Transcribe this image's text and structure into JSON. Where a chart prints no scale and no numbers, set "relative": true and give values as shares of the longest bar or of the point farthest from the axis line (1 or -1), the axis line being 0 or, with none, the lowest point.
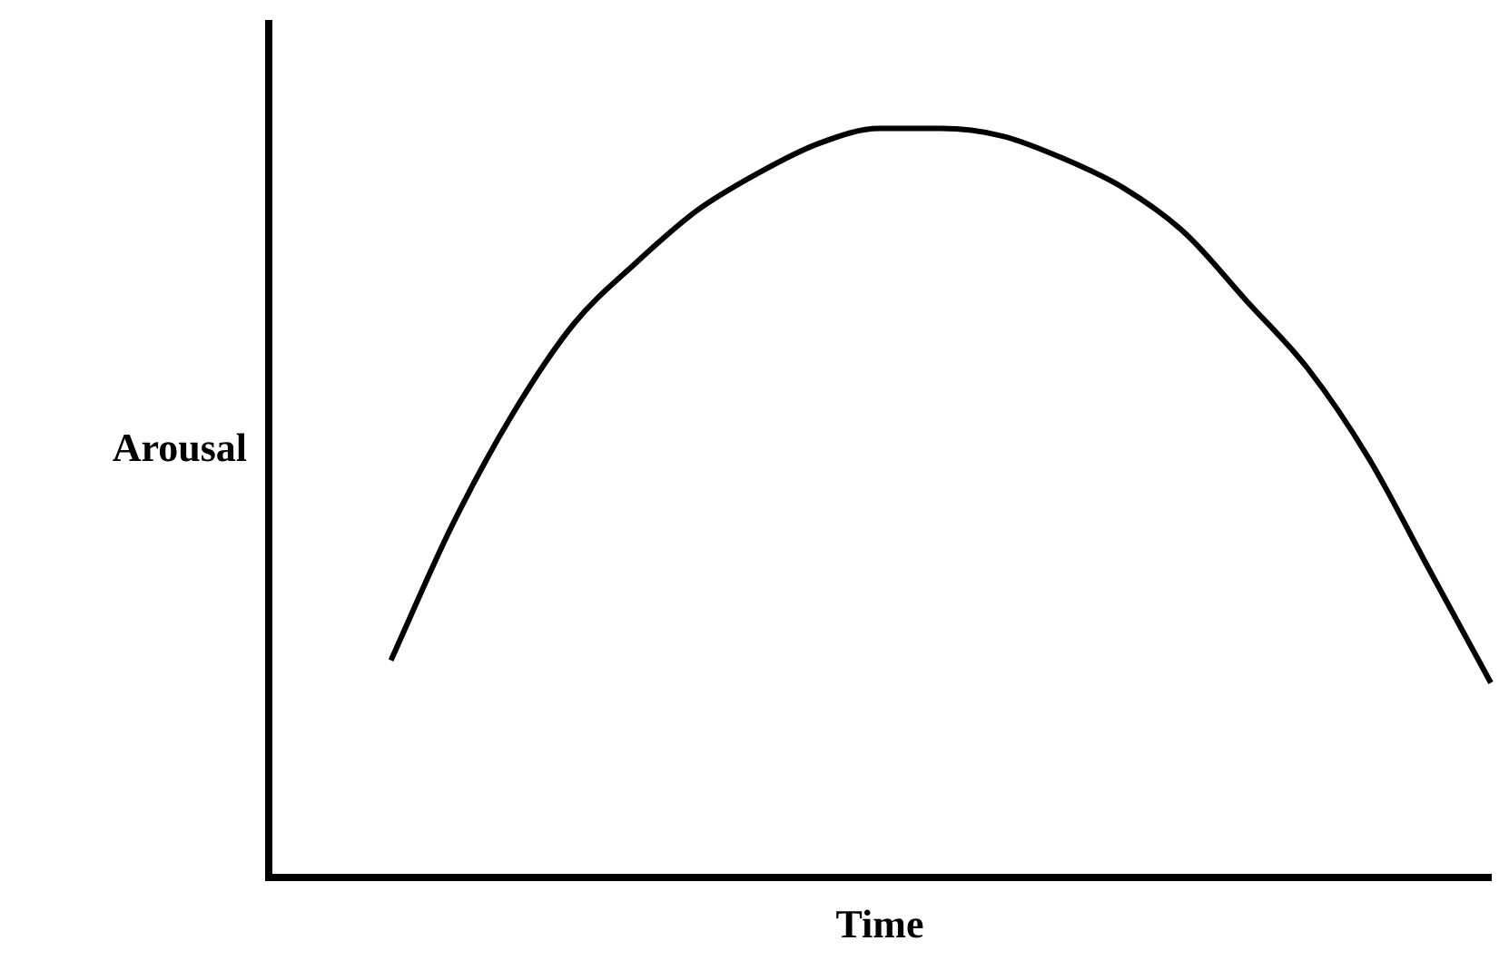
{
  "chart_data": {
    "type": "line",
    "relative": true,
    "xlabel": "Time",
    "ylabel": "Arousal",
    "categories": [
      null,
      null,
      null,
      null,
      null,
      null,
      null,
      null,
      null,
      null,
      null,
      null,
      null,
      null,
      null,
      null,
      null,
      null,
      null,
      null,
      null
    ],
    "series": [
      {
        "color": "#000000",
        "values": [
          null,
          null,
          0.29,
          0.47,
          0.62,
          0.74,
          0.82,
          0.89,
          0.94,
          0.98,
          1.0,
          1.0,
          0.99,
          0.96,
          0.92,
          0.86,
          0.77,
          0.68,
          0.56,
          0.41,
          0.26
        ]
      }
    ],
    "grid": false,
    "legend": false,
    "marker": "none",
    "line_style": "solid"
  }
}
